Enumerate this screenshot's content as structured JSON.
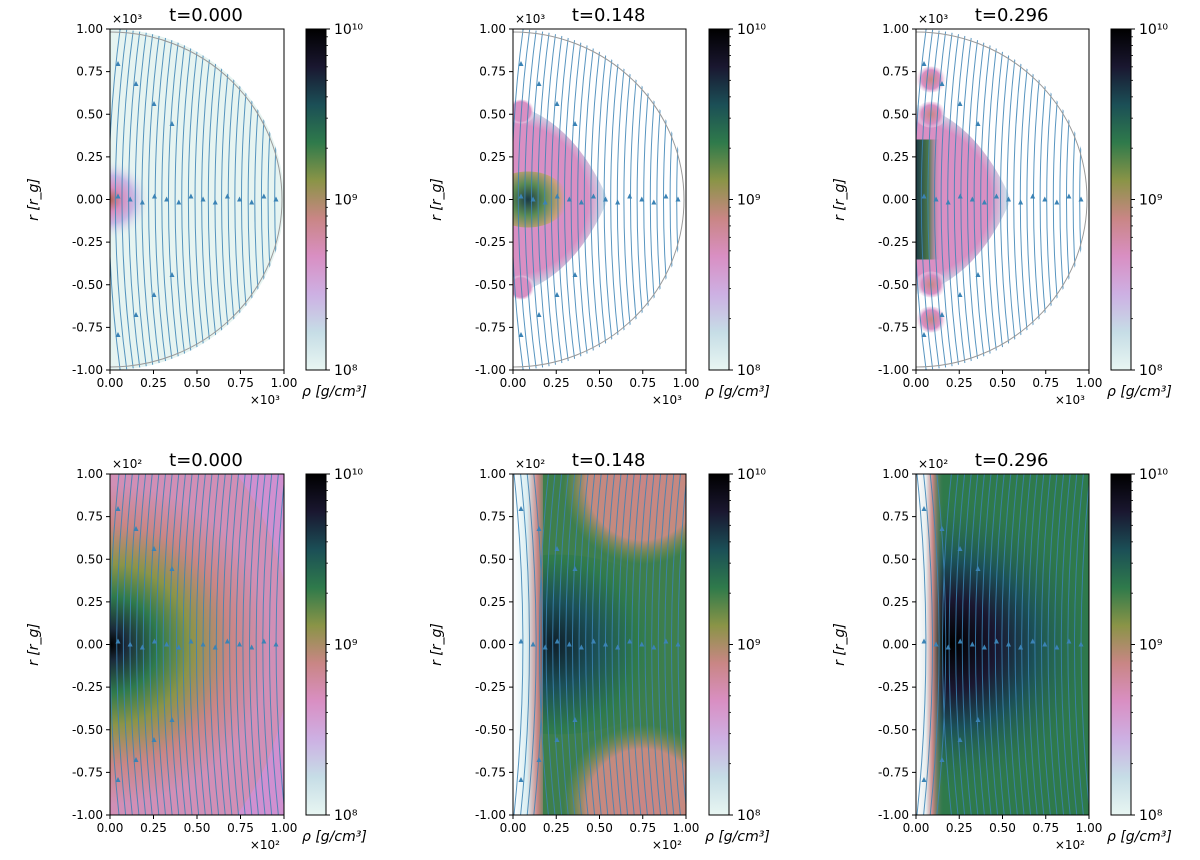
{
  "figure": {
    "ylabel": "r [r_g]",
    "colorbar_label": "ρ [g/cm³]",
    "colorbar_ticks": [
      "10¹⁰",
      "10⁹",
      "10⁸"
    ],
    "tick_labels": [
      "-1.00",
      "-0.75",
      "-0.50",
      "-0.25",
      "0.00",
      "0.25",
      "0.50",
      "0.75",
      "1.00"
    ],
    "x_tick_labels": [
      "0.00",
      "0.25",
      "0.50",
      "0.75",
      "1.00"
    ],
    "multipliers": {
      "top": "×10³",
      "bottom": "×10²"
    }
  },
  "colormap": {
    "name": "cubehelix-like (light → pink → green → dark)",
    "stops": [
      "#e8f6f2",
      "#c6dde6",
      "#cdb0e3",
      "#d98fc3",
      "#c98685",
      "#8a9447",
      "#2f7a4b",
      "#1b4f56",
      "#1a1730",
      "#000000"
    ]
  },
  "streamline_color": "#3b83b5",
  "chart_data": [
    {
      "type": "heatmap",
      "title": "t=0.000",
      "row": "top",
      "xlim": [
        0,
        1000
      ],
      "ylim": [
        -1000,
        1000
      ],
      "domain": "half-disk",
      "colorbar_range": [
        100000000.0,
        10000000000.0
      ],
      "colorbar_scale": "log",
      "description_of_field": "near-uniform low density ~1.2e8 with small dense blob ~5e8 at origin"
    },
    {
      "type": "heatmap",
      "title": "t=0.148",
      "row": "top",
      "xlim": [
        0,
        1000
      ],
      "ylim": [
        -1000,
        1000
      ],
      "domain": "half-disk",
      "colorbar_range": [
        100000000.0,
        10000000000.0
      ],
      "colorbar_scale": "log",
      "description_of_field": "pink lobe to r≈500 along equator, green/dark core near origin, pink blobs near axis at ±500"
    },
    {
      "type": "heatmap",
      "title": "t=0.296",
      "row": "top",
      "xlim": [
        0,
        1000
      ],
      "ylim": [
        -1000,
        1000
      ],
      "domain": "half-disk",
      "colorbar_range": [
        100000000.0,
        10000000000.0
      ],
      "colorbar_scale": "log",
      "description_of_field": "pink lobe to r≈500, dark green column along axis, pink blobs near axis"
    },
    {
      "type": "heatmap",
      "title": "t=0.000",
      "row": "bottom",
      "xlim": [
        0,
        100
      ],
      "ylim": [
        -100,
        100
      ],
      "domain": "rectangle",
      "colorbar_range": [
        100000000.0,
        10000000000.0
      ],
      "colorbar_scale": "log",
      "description_of_field": "dark core ~1e10 at origin fading through green to pink/lavender outward"
    },
    {
      "type": "heatmap",
      "title": "t=0.148",
      "row": "bottom",
      "xlim": [
        0,
        100
      ],
      "ylim": [
        -100,
        100
      ],
      "domain": "rectangle",
      "colorbar_range": [
        100000000.0,
        10000000000.0
      ],
      "colorbar_scale": "log",
      "description_of_field": "low-density column x<15, green/dark wedge along equator, pink regions top/bottom right"
    },
    {
      "type": "heatmap",
      "title": "t=0.296",
      "row": "bottom",
      "xlim": [
        0,
        100
      ],
      "ylim": [
        -100,
        100
      ],
      "domain": "rectangle",
      "colorbar_range": [
        100000000.0,
        10000000000.0
      ],
      "colorbar_scale": "log",
      "description_of_field": "low-density column x<10, dark core to x≈50 along equator, green elsewhere"
    }
  ]
}
